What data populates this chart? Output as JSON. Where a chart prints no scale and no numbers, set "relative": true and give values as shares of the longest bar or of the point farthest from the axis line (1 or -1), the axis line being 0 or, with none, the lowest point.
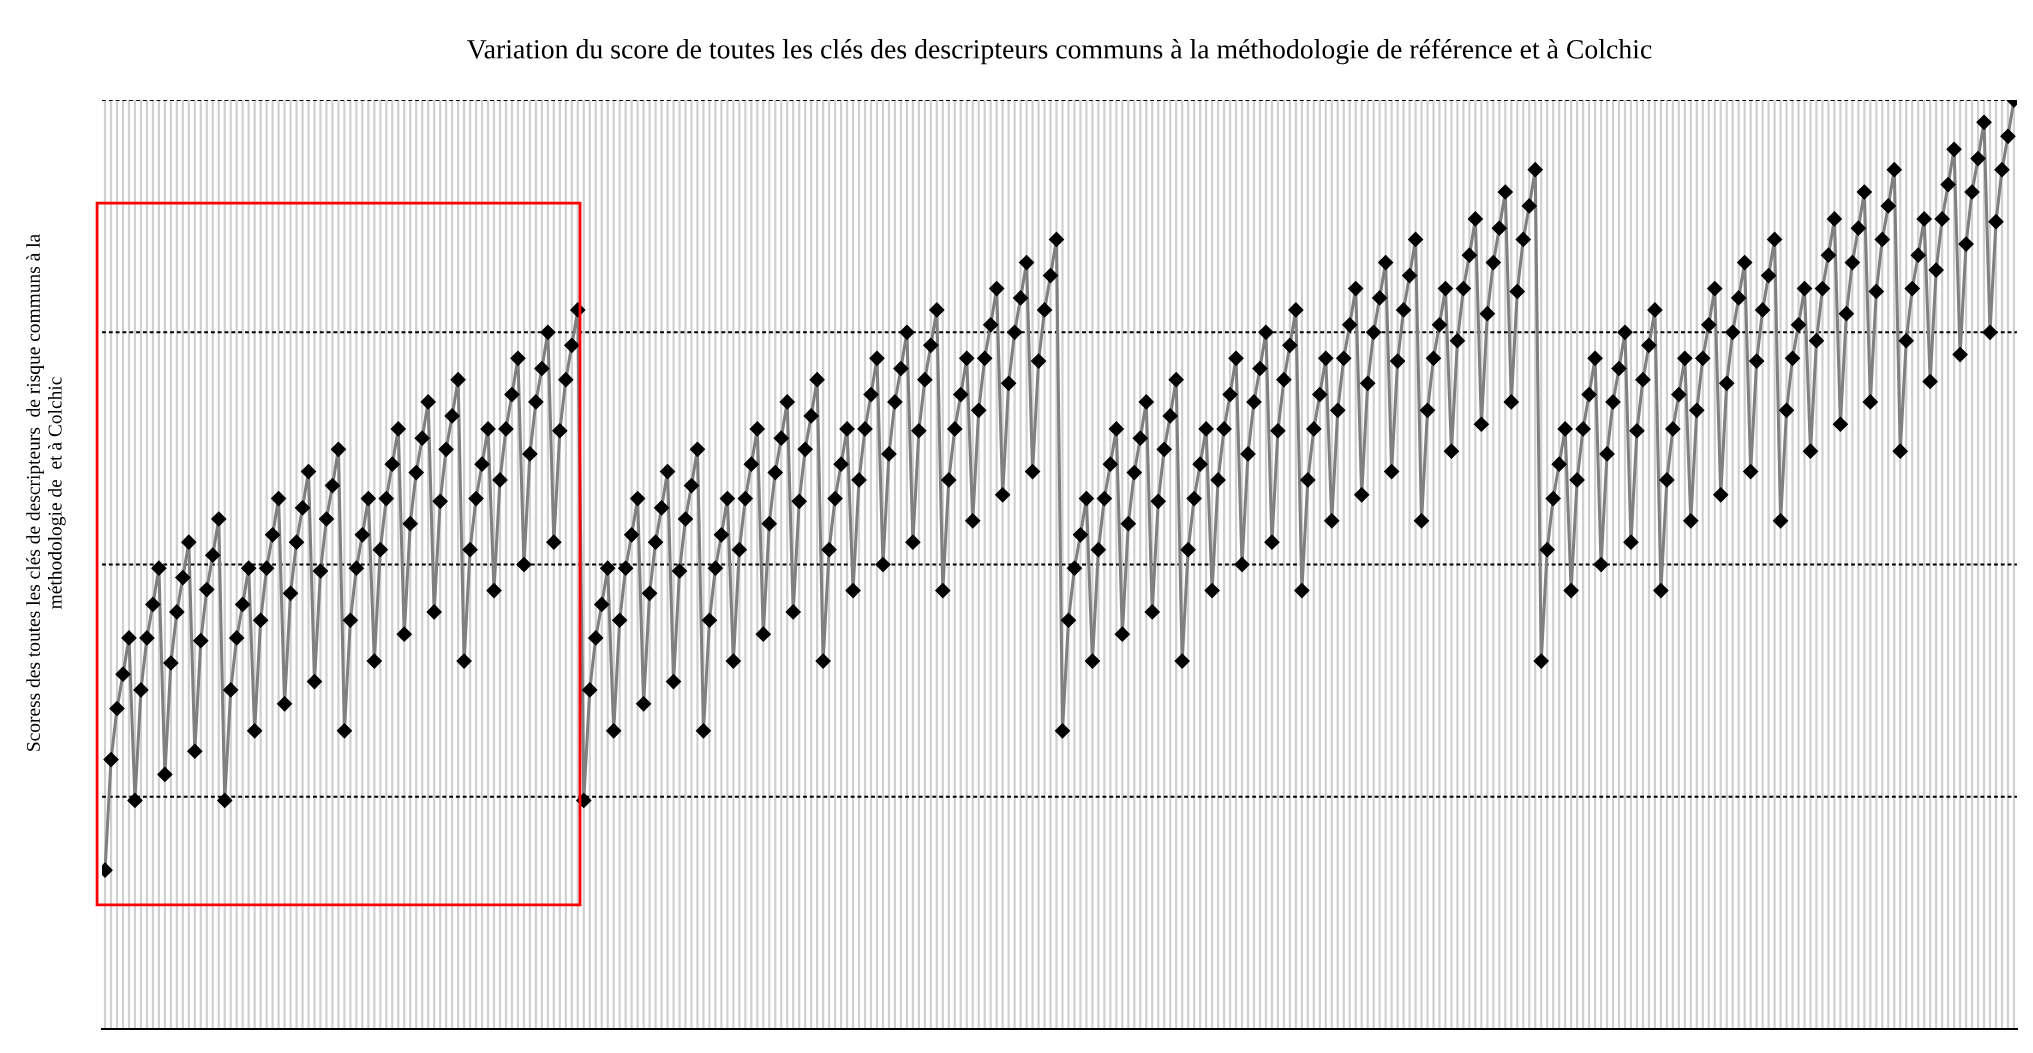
{
  "chart_data": {
    "type": "line",
    "title": "Variation du score de toutes les clés des descripteurs communs à la méthodologie de référence et à Colchic",
    "ylabel": "Scoress des toutes les clés de descripteurs  de risque communs à la\nméthodologie de  et à Colchic",
    "relative": true,
    "grid": true,
    "tick_labels": false,
    "marker": "diamond",
    "line_style": "solid",
    "categories": [
      null,
      null,
      null,
      null,
      null,
      null,
      null,
      null,
      null,
      null,
      null,
      null,
      null,
      null,
      null,
      null,
      null,
      null,
      null,
      null,
      null,
      null,
      null,
      null,
      null,
      null,
      null,
      null,
      null,
      null,
      null,
      null,
      null,
      null,
      null,
      null,
      null,
      null,
      null,
      null,
      null,
      null,
      null,
      null,
      null,
      null,
      null,
      null,
      null,
      null,
      null,
      null,
      null,
      null,
      null,
      null,
      null,
      null,
      null,
      null,
      null,
      null,
      null,
      null,
      null,
      null,
      null,
      null,
      null,
      null,
      null,
      null,
      null,
      null,
      null,
      null,
      null,
      null,
      null,
      null,
      null,
      null,
      null,
      null,
      null,
      null,
      null,
      null,
      null,
      null,
      null,
      null,
      null,
      null,
      null,
      null,
      null,
      null,
      null,
      null,
      null,
      null,
      null,
      null,
      null,
      null,
      null,
      null,
      null,
      null,
      null,
      null,
      null,
      null,
      null,
      null,
      null,
      null,
      null,
      null,
      null,
      null,
      null,
      null,
      null,
      null,
      null,
      null,
      null,
      null,
      null,
      null,
      null,
      null,
      null,
      null,
      null,
      null,
      null,
      null,
      null,
      null,
      null,
      null,
      null,
      null,
      null,
      null,
      null,
      null,
      null,
      null,
      null,
      null,
      null,
      null,
      null,
      null,
      null,
      null,
      null,
      null,
      null,
      null,
      null,
      null,
      null,
      null,
      null,
      null,
      null,
      null,
      null,
      null,
      null,
      null,
      null,
      null,
      null,
      null,
      null,
      null,
      null,
      null,
      null,
      null,
      null,
      null,
      null,
      null,
      null,
      null,
      null,
      null,
      null,
      null,
      null,
      null,
      null,
      null,
      null,
      null,
      null,
      null,
      null,
      null,
      null,
      null,
      null,
      null,
      null,
      null,
      null,
      null,
      null,
      null,
      null,
      null,
      null,
      null,
      null,
      null,
      null,
      null,
      null,
      null,
      null,
      null,
      null,
      null,
      null,
      null,
      null,
      null,
      null,
      null,
      null,
      null,
      null,
      null,
      null,
      null,
      null,
      null,
      null,
      null,
      null,
      null,
      null,
      null,
      null,
      null,
      null,
      null,
      null,
      null,
      null,
      null,
      null,
      null,
      null,
      null,
      null,
      null,
      null,
      null,
      null,
      null,
      null,
      null,
      null,
      null,
      null,
      null,
      null,
      null,
      null,
      null,
      null,
      null,
      null,
      null,
      null,
      null,
      null,
      null,
      null,
      null,
      null,
      null,
      null,
      null,
      null,
      null,
      null,
      null,
      null,
      null,
      null,
      null,
      null,
      null,
      null,
      null,
      null,
      null,
      null,
      null,
      null,
      null,
      null,
      null,
      null,
      null,
      null,
      null,
      null,
      null,
      null,
      null
    ],
    "series": [
      {
        "color": "#808080",
        "values": [
          0.171,
          0.29,
          0.345,
          0.382,
          0.421,
          0.246,
          0.365,
          0.421,
          0.457,
          0.496,
          0.274,
          0.394,
          0.449,
          0.486,
          0.524,
          0.299,
          0.418,
          0.473,
          0.51,
          0.549,
          0.246,
          0.365,
          0.421,
          0.457,
          0.496,
          0.321,
          0.44,
          0.496,
          0.532,
          0.571,
          0.35,
          0.469,
          0.524,
          0.561,
          0.6,
          0.374,
          0.493,
          0.549,
          0.585,
          0.624,
          0.321,
          0.44,
          0.496,
          0.532,
          0.571,
          0.396,
          0.516,
          0.571,
          0.608,
          0.646,
          0.425,
          0.544,
          0.599,
          0.636,
          0.675,
          0.449,
          0.568,
          0.624,
          0.66,
          0.699,
          0.396,
          0.516,
          0.571,
          0.608,
          0.646,
          0.472,
          0.591,
          0.646,
          0.683,
          0.722,
          0.5,
          0.619,
          0.675,
          0.711,
          0.75,
          0.524,
          0.644,
          0.699,
          0.736,
          0.774,
          0.246,
          0.365,
          0.421,
          0.457,
          0.496,
          0.321,
          0.44,
          0.496,
          0.532,
          0.571,
          0.35,
          0.469,
          0.524,
          0.561,
          0.6,
          0.374,
          0.493,
          0.549,
          0.585,
          0.624,
          0.321,
          0.44,
          0.496,
          0.532,
          0.571,
          0.396,
          0.516,
          0.571,
          0.608,
          0.646,
          0.425,
          0.544,
          0.599,
          0.636,
          0.675,
          0.449,
          0.568,
          0.624,
          0.66,
          0.699,
          0.396,
          0.516,
          0.571,
          0.608,
          0.646,
          0.472,
          0.591,
          0.646,
          0.683,
          0.722,
          0.5,
          0.619,
          0.675,
          0.711,
          0.75,
          0.524,
          0.644,
          0.699,
          0.736,
          0.774,
          0.472,
          0.591,
          0.646,
          0.683,
          0.722,
          0.547,
          0.666,
          0.722,
          0.758,
          0.797,
          0.575,
          0.695,
          0.75,
          0.787,
          0.825,
          0.6,
          0.719,
          0.774,
          0.811,
          0.85,
          0.321,
          0.44,
          0.496,
          0.532,
          0.571,
          0.396,
          0.516,
          0.571,
          0.608,
          0.646,
          0.425,
          0.544,
          0.599,
          0.636,
          0.675,
          0.449,
          0.568,
          0.624,
          0.66,
          0.699,
          0.396,
          0.516,
          0.571,
          0.608,
          0.646,
          0.472,
          0.591,
          0.646,
          0.683,
          0.722,
          0.5,
          0.619,
          0.675,
          0.711,
          0.75,
          0.524,
          0.644,
          0.699,
          0.736,
          0.774,
          0.472,
          0.591,
          0.646,
          0.683,
          0.722,
          0.547,
          0.666,
          0.722,
          0.758,
          0.797,
          0.575,
          0.695,
          0.75,
          0.787,
          0.825,
          0.6,
          0.719,
          0.774,
          0.811,
          0.85,
          0.547,
          0.666,
          0.722,
          0.758,
          0.797,
          0.622,
          0.741,
          0.797,
          0.833,
          0.872,
          0.651,
          0.77,
          0.825,
          0.862,
          0.901,
          0.675,
          0.794,
          0.85,
          0.886,
          0.925,
          0.396,
          0.516,
          0.571,
          0.608,
          0.646,
          0.472,
          0.591,
          0.646,
          0.683,
          0.722,
          0.5,
          0.619,
          0.675,
          0.711,
          0.75,
          0.524,
          0.644,
          0.699,
          0.736,
          0.774,
          0.472,
          0.591,
          0.646,
          0.683,
          0.722,
          0.547,
          0.666,
          0.722,
          0.758,
          0.797,
          0.575,
          0.695,
          0.75,
          0.787,
          0.825,
          0.6,
          0.719,
          0.774,
          0.811,
          0.85,
          0.547,
          0.666,
          0.722,
          0.758,
          0.797,
          0.622,
          0.741,
          0.797,
          0.833,
          0.872,
          0.651,
          0.77,
          0.825,
          0.862,
          0.901,
          0.675,
          0.794,
          0.85,
          0.886,
          0.925,
          0.622,
          0.741,
          0.797,
          0.833,
          0.872,
          0.697,
          0.817,
          0.872,
          0.909,
          0.947,
          0.726,
          0.845,
          0.901,
          0.937,
          0.976,
          0.75,
          0.869,
          0.925,
          0.961,
          1
        ]
      }
    ]
  }
}
